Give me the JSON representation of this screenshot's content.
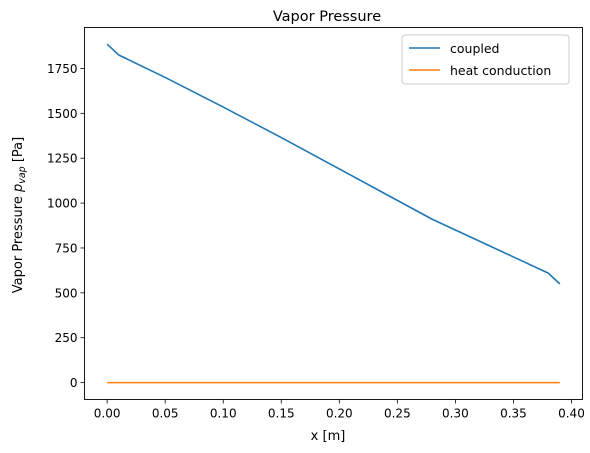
{
  "chart_data": {
    "type": "line",
    "title": "Vapor Pressure",
    "xlabel": "x [m]",
    "ylabel_prefix": "Vapor Pressure ",
    "ylabel_symbol": "p",
    "ylabel_subscript": "vap",
    "ylabel_suffix": " [Pa]",
    "xlim": [
      -0.0195,
      0.4095
    ],
    "ylim": [
      -94,
      1978
    ],
    "x_ticks": [
      0.0,
      0.05,
      0.1,
      0.15,
      0.2,
      0.25,
      0.3,
      0.35,
      0.4
    ],
    "x_tick_labels": [
      "0.00",
      "0.05",
      "0.10",
      "0.15",
      "0.20",
      "0.25",
      "0.30",
      "0.35",
      "0.40"
    ],
    "y_ticks": [
      0,
      250,
      500,
      750,
      1000,
      1250,
      1500,
      1750
    ],
    "y_tick_labels": [
      "0",
      "250",
      "500",
      "750",
      "1000",
      "1250",
      "1500",
      "1750"
    ],
    "grid": false,
    "legend_position": "top-right",
    "series": [
      {
        "name": "coupled",
        "color": "#1f77b4",
        "x": [
          0.0,
          0.01,
          0.05,
          0.1,
          0.15,
          0.2,
          0.25,
          0.28,
          0.3,
          0.35,
          0.38,
          0.39
        ],
        "y": [
          1885,
          1825,
          1700,
          1535,
          1365,
          1190,
          1015,
          910,
          850,
          700,
          610,
          550
        ]
      },
      {
        "name": "heat conduction",
        "color": "#ff7f0e",
        "x": [
          0.0,
          0.39
        ],
        "y": [
          0,
          0
        ]
      }
    ]
  }
}
